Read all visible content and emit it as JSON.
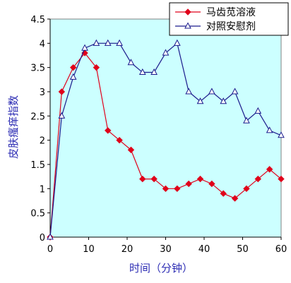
{
  "chart_data": {
    "type": "line",
    "title": "",
    "xlabel": "时间（分钟）",
    "ylabel": "皮肤瘙痒指数",
    "xlim": [
      0,
      60
    ],
    "ylim": [
      0,
      4.5
    ],
    "xticks": [
      0,
      10,
      20,
      30,
      40,
      50,
      60
    ],
    "yticks": [
      0,
      0.5,
      1,
      1.5,
      2,
      2.5,
      3,
      3.5,
      4,
      4.5
    ],
    "grid": false,
    "legend_position": "top-right",
    "x": [
      0,
      3,
      6,
      9,
      12,
      15,
      18,
      21,
      24,
      27,
      30,
      33,
      36,
      39,
      42,
      45,
      48,
      51,
      54,
      57,
      60
    ],
    "series": [
      {
        "name": "马齿苋溶液",
        "color": "#e0001a",
        "marker": "diamond",
        "values": [
          0,
          3.0,
          3.5,
          3.8,
          3.5,
          2.2,
          2.0,
          1.8,
          1.2,
          1.2,
          1.0,
          1.0,
          1.1,
          1.2,
          1.1,
          0.9,
          0.8,
          1.0,
          1.2,
          1.4,
          1.2
        ]
      },
      {
        "name": "对照安慰剂",
        "color": "#1a1a8c",
        "marker": "triangle",
        "values": [
          0,
          2.5,
          3.3,
          3.9,
          4.0,
          4.0,
          4.0,
          3.6,
          3.4,
          3.4,
          3.8,
          4.0,
          3.0,
          2.8,
          3.0,
          2.8,
          3.0,
          2.4,
          2.6,
          2.2,
          2.1
        ]
      }
    ],
    "plot_background": "#ccffff"
  }
}
